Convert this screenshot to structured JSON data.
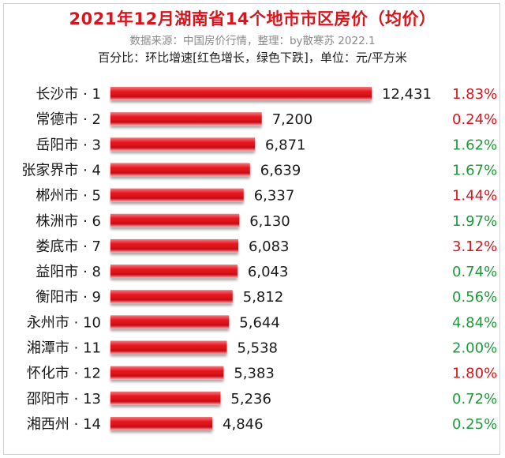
{
  "title": "2021年12月湖南省14个地市市区房价（均价）",
  "subtitle": "数据来源：中国房价行情，整理：by散寒苏 2022.1",
  "note": "百分比：环比增速[红色增长，绿色下跌]，单位：元/平方米",
  "colors": {
    "title": "#d9141c",
    "bar": "#e8161f",
    "increase": "#d9141c",
    "decrease": "#1e9a3a"
  },
  "chart_data": {
    "type": "bar",
    "orientation": "horizontal",
    "unit": "元/平方米",
    "categories": [
      "长沙市 · 1",
      "常德市 · 2",
      "岳阳市 · 3",
      "张家界市 · 4",
      "郴州市 · 5",
      "株洲市 · 6",
      "娄底市 · 7",
      "益阳市 · 8",
      "衡阳市 · 9",
      "永州市 · 10",
      "湘潭市 · 11",
      "怀化市 · 12",
      "邵阳市 · 13",
      "湘西州 · 14"
    ],
    "values": [
      12431,
      7200,
      6871,
      6639,
      6337,
      6130,
      6083,
      6043,
      5812,
      5644,
      5538,
      5383,
      5236,
      4846
    ],
    "value_labels": [
      "12,431",
      "7,200",
      "6,871",
      "6,639",
      "6,337",
      "6,130",
      "6,083",
      "6,043",
      "5,812",
      "5,644",
      "5,538",
      "5,383",
      "5,236",
      "4,846"
    ],
    "mom_change_labels": [
      "1.83%",
      "0.24%",
      "1.62%",
      "1.67%",
      "1.44%",
      "1.97%",
      "3.12%",
      "0.74%",
      "0.56%",
      "4.84%",
      "2.00%",
      "1.80%",
      "0.72%",
      "0.25%"
    ],
    "mom_direction": [
      "up",
      "up",
      "down",
      "down",
      "up",
      "down",
      "up",
      "down",
      "down",
      "down",
      "down",
      "up",
      "down",
      "down"
    ],
    "xlim": [
      0,
      12431
    ],
    "grid": false,
    "legend": "none"
  }
}
